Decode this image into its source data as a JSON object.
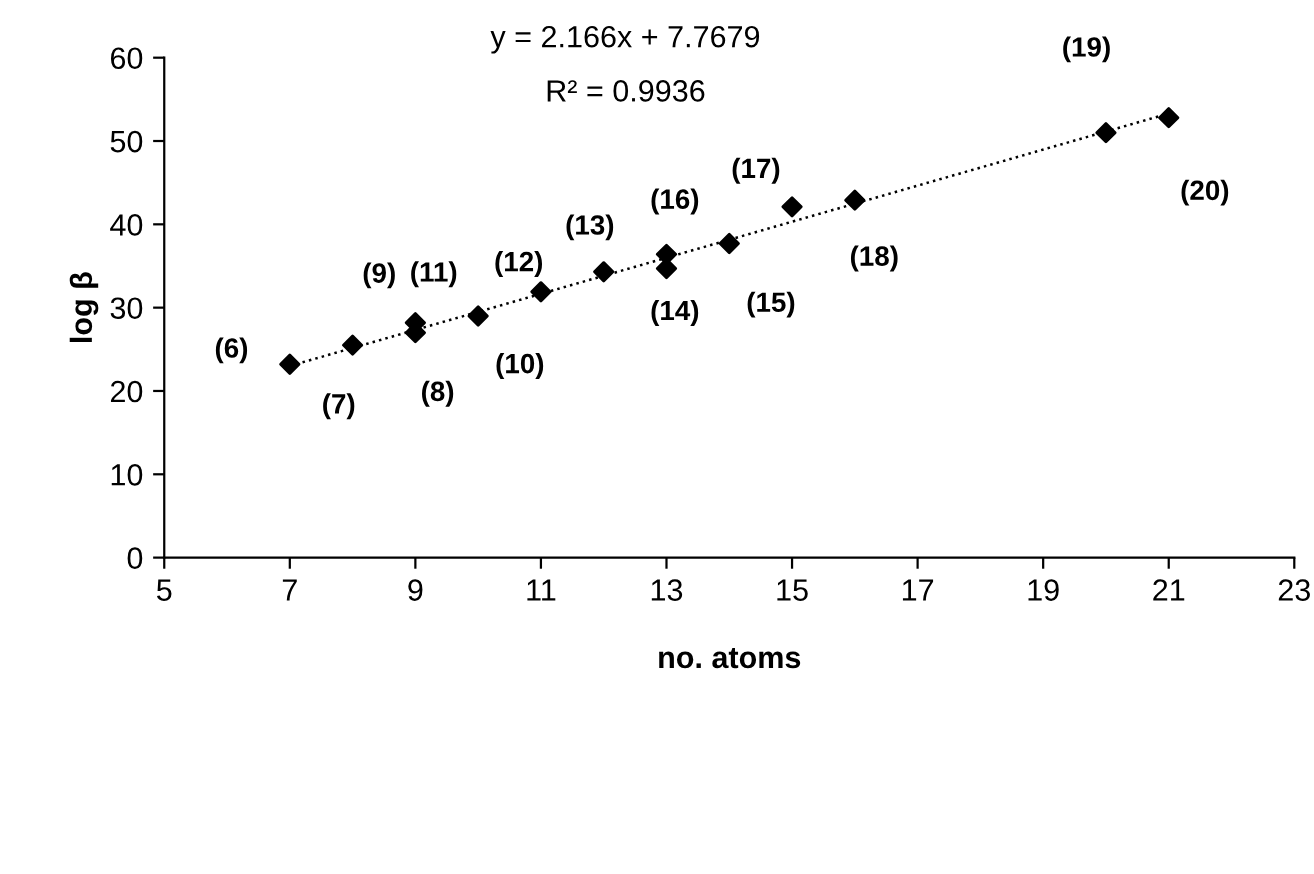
{
  "chart_data": {
    "type": "scatter",
    "xlabel": "no. atoms",
    "ylabel": "log β",
    "xlim": [
      5,
      23
    ],
    "xticks": [
      5,
      7,
      9,
      11,
      13,
      15,
      17,
      19,
      21,
      23
    ],
    "ylim": [
      0,
      60
    ],
    "yticks": [
      0,
      10,
      20,
      30,
      40,
      50,
      60
    ],
    "grid": false,
    "legend": false,
    "marker": "diamond",
    "series": [
      {
        "color": "#000000",
        "x": [
          7,
          8,
          9,
          9,
          10,
          11,
          12,
          13,
          13,
          14,
          15,
          16,
          20,
          21
        ],
        "values": [
          23.2,
          25.5,
          27.0,
          28.2,
          29.0,
          31.9,
          34.3,
          34.7,
          36.4,
          37.7,
          42.1,
          42.9,
          51.0,
          52.8
        ]
      },
      {
        "type": "line",
        "color": "#000000",
        "line_style": "dotted",
        "marker": "none",
        "x": [
          7,
          21
        ],
        "values": [
          23.0,
          53.3
        ]
      }
    ],
    "annotations": [
      "y = 2.166x + 7.7679",
      "R² = 0.9936",
      {
        "text": "(6)",
        "x": 7,
        "y": 23.2
      },
      {
        "text": "(7)",
        "x": 8,
        "y": 25.5
      },
      {
        "text": "(8)",
        "x": 9,
        "y": 27.0
      },
      {
        "text": "(9)",
        "x": 9,
        "y": 28.2
      },
      {
        "text": "(10)",
        "x": 10,
        "y": 29.0
      },
      {
        "text": "(11)",
        "x": 10,
        "y": 29.0
      },
      {
        "text": "(12)",
        "x": 11,
        "y": 31.9
      },
      {
        "text": "(13)",
        "x": 12,
        "y": 34.3
      },
      {
        "text": "(14)",
        "x": 13,
        "y": 34.7
      },
      {
        "text": "(15)",
        "x": 14,
        "y": 37.7
      },
      {
        "text": "(16)",
        "x": 13,
        "y": 36.4
      },
      {
        "text": "(17)",
        "x": 15,
        "y": 42.1
      },
      {
        "text": "(18)",
        "x": 16,
        "y": 42.9
      },
      {
        "text": "(19)",
        "x": 20,
        "y": 51.0
      },
      {
        "text": "(20)",
        "x": 21,
        "y": 52.8
      }
    ]
  }
}
